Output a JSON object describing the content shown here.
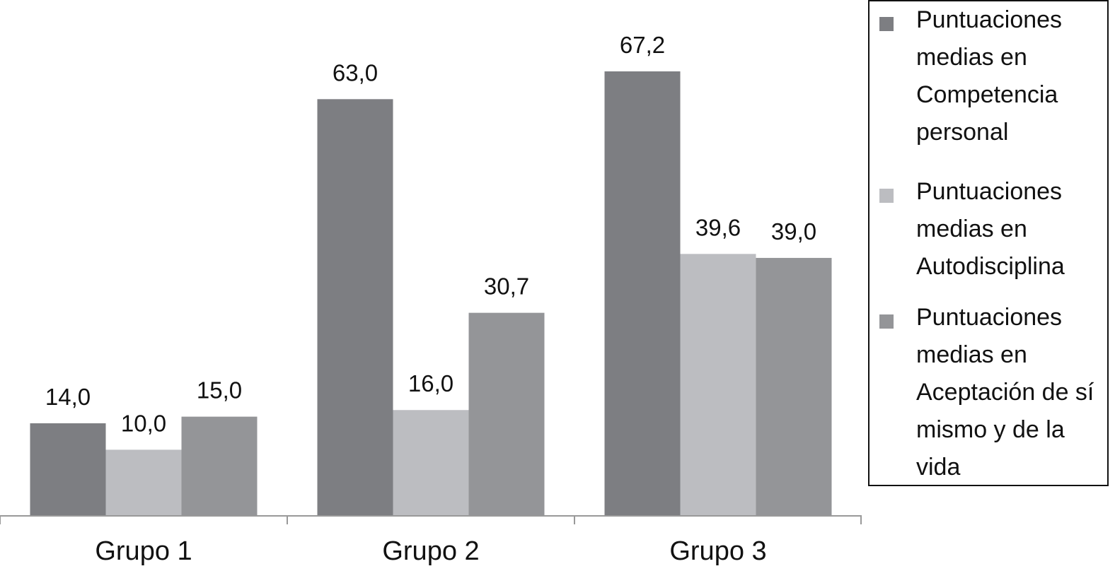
{
  "chart_data": {
    "type": "bar",
    "categories": [
      "Grupo 1",
      "Grupo 2",
      "Grupo 3"
    ],
    "series": [
      {
        "name": "Puntuaciones medias en Competencia personal",
        "color": "#7d7e82",
        "values": [
          14.0,
          63.0,
          67.2
        ],
        "value_labels": [
          "14,0",
          "63,0",
          "67,2"
        ]
      },
      {
        "name": "Puntuaciones medias en Autodisciplina",
        "color": "#bcbdc1",
        "values": [
          10.0,
          16.0,
          39.6
        ],
        "value_labels": [
          "10,0",
          "16,0",
          "39,6"
        ]
      },
      {
        "name": "Puntuaciones medias en Aceptación de sí mismo y de la vida",
        "color": "#949598",
        "values": [
          15.0,
          30.7,
          39.0
        ],
        "value_labels": [
          "15,0",
          "30,7",
          "39,0"
        ]
      }
    ],
    "legend": "right"
  }
}
